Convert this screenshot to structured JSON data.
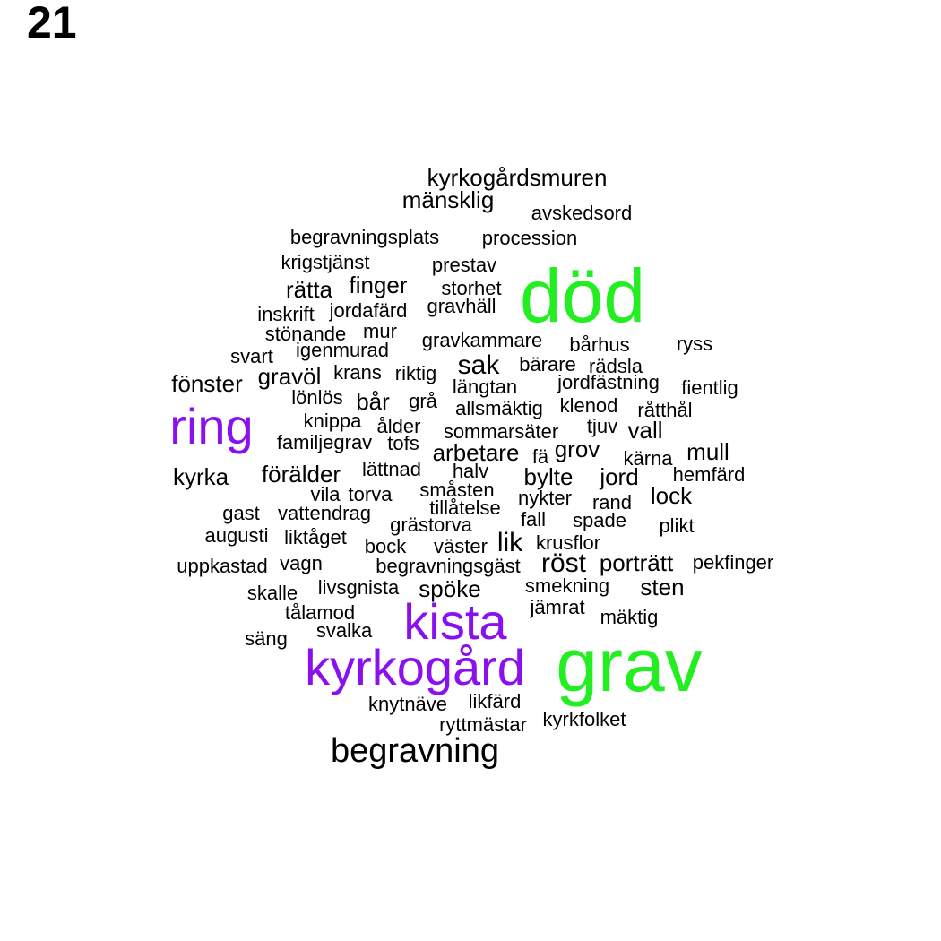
{
  "page_number": "21",
  "colors": {
    "green": "#22ee22",
    "purple": "#8a10ee",
    "black": "#000000"
  },
  "words": [
    {
      "text": "död",
      "color": "green",
      "size": "xl"
    },
    {
      "text": "grav",
      "color": "green",
      "size": "xl"
    },
    {
      "text": "kyrkogård",
      "color": "purple",
      "size": "l"
    },
    {
      "text": "kista",
      "color": "purple",
      "size": "l"
    },
    {
      "text": "ring",
      "color": "purple",
      "size": "l"
    },
    {
      "text": "begravning",
      "color": "black",
      "size": "m"
    },
    {
      "text": "sak",
      "color": "black",
      "size": "s"
    },
    {
      "text": "lik",
      "color": "black",
      "size": "s"
    },
    {
      "text": "kyrkogårdsmuren",
      "color": "black",
      "size": "r"
    },
    {
      "text": "mänsklig",
      "color": "black",
      "size": "r"
    },
    {
      "text": "avskedsord",
      "color": "black",
      "size": "xs"
    },
    {
      "text": "begravningsplats",
      "color": "black",
      "size": "xs"
    },
    {
      "text": "procession",
      "color": "black",
      "size": "xs"
    },
    {
      "text": "krigstjänst",
      "color": "black",
      "size": "xs"
    },
    {
      "text": "prestav",
      "color": "black",
      "size": "xs"
    },
    {
      "text": "rätta",
      "color": "black",
      "size": "r"
    },
    {
      "text": "finger",
      "color": "black",
      "size": "r"
    },
    {
      "text": "storhet",
      "color": "black",
      "size": "xs"
    },
    {
      "text": "inskrift",
      "color": "black",
      "size": "xs"
    },
    {
      "text": "jordafärd",
      "color": "black",
      "size": "xs"
    },
    {
      "text": "gravhäll",
      "color": "black",
      "size": "xs"
    },
    {
      "text": "stönande",
      "color": "black",
      "size": "xs"
    },
    {
      "text": "mur",
      "color": "black",
      "size": "xs"
    },
    {
      "text": "gravkammare",
      "color": "black",
      "size": "xs"
    },
    {
      "text": "bårhus",
      "color": "black",
      "size": "xs"
    },
    {
      "text": "ryss",
      "color": "black",
      "size": "xs"
    },
    {
      "text": "svart",
      "color": "black",
      "size": "xs"
    },
    {
      "text": "igenmurad",
      "color": "black",
      "size": "xs"
    },
    {
      "text": "bärare",
      "color": "black",
      "size": "xs"
    },
    {
      "text": "rädsla",
      "color": "black",
      "size": "xs"
    },
    {
      "text": "fönster",
      "color": "black",
      "size": "r"
    },
    {
      "text": "gravöl",
      "color": "black",
      "size": "r"
    },
    {
      "text": "krans",
      "color": "black",
      "size": "xs"
    },
    {
      "text": "riktig",
      "color": "black",
      "size": "xs"
    },
    {
      "text": "längtan",
      "color": "black",
      "size": "xs"
    },
    {
      "text": "jordfästning",
      "color": "black",
      "size": "xs"
    },
    {
      "text": "fientlig",
      "color": "black",
      "size": "xs"
    },
    {
      "text": "lönlös",
      "color": "black",
      "size": "xs"
    },
    {
      "text": "bår",
      "color": "black",
      "size": "r"
    },
    {
      "text": "grå",
      "color": "black",
      "size": "xs"
    },
    {
      "text": "allsmäktig",
      "color": "black",
      "size": "xs"
    },
    {
      "text": "klenod",
      "color": "black",
      "size": "xs"
    },
    {
      "text": "råtthål",
      "color": "black",
      "size": "xs"
    },
    {
      "text": "knippa",
      "color": "black",
      "size": "xs"
    },
    {
      "text": "ålder",
      "color": "black",
      "size": "xs"
    },
    {
      "text": "sommarsäter",
      "color": "black",
      "size": "xs"
    },
    {
      "text": "tjuv",
      "color": "black",
      "size": "xs"
    },
    {
      "text": "vall",
      "color": "black",
      "size": "r"
    },
    {
      "text": "familjegrav",
      "color": "black",
      "size": "xs"
    },
    {
      "text": "tofs",
      "color": "black",
      "size": "xs"
    },
    {
      "text": "arbetare",
      "color": "black",
      "size": "r"
    },
    {
      "text": "fä",
      "color": "black",
      "size": "xs"
    },
    {
      "text": "grov",
      "color": "black",
      "size": "r"
    },
    {
      "text": "kärna",
      "color": "black",
      "size": "xs"
    },
    {
      "text": "mull",
      "color": "black",
      "size": "r"
    },
    {
      "text": "kyrka",
      "color": "black",
      "size": "r"
    },
    {
      "text": "förälder",
      "color": "black",
      "size": "r"
    },
    {
      "text": "lättnad",
      "color": "black",
      "size": "xs"
    },
    {
      "text": "halv",
      "color": "black",
      "size": "xs"
    },
    {
      "text": "bylte",
      "color": "black",
      "size": "r"
    },
    {
      "text": "jord",
      "color": "black",
      "size": "r"
    },
    {
      "text": "hemfärd",
      "color": "black",
      "size": "xs"
    },
    {
      "text": "vila",
      "color": "black",
      "size": "xs"
    },
    {
      "text": "torva",
      "color": "black",
      "size": "xs"
    },
    {
      "text": "småsten",
      "color": "black",
      "size": "xs"
    },
    {
      "text": "nykter",
      "color": "black",
      "size": "xs"
    },
    {
      "text": "rand",
      "color": "black",
      "size": "xs"
    },
    {
      "text": "lock",
      "color": "black",
      "size": "r"
    },
    {
      "text": "tillåtelse",
      "color": "black",
      "size": "xs"
    },
    {
      "text": "gast",
      "color": "black",
      "size": "xs"
    },
    {
      "text": "vattendrag",
      "color": "black",
      "size": "xs"
    },
    {
      "text": "grästorva",
      "color": "black",
      "size": "xs"
    },
    {
      "text": "fall",
      "color": "black",
      "size": "xs"
    },
    {
      "text": "spade",
      "color": "black",
      "size": "xs"
    },
    {
      "text": "plikt",
      "color": "black",
      "size": "xs"
    },
    {
      "text": "augusti",
      "color": "black",
      "size": "xs"
    },
    {
      "text": "liktåget",
      "color": "black",
      "size": "xs"
    },
    {
      "text": "bock",
      "color": "black",
      "size": "xs"
    },
    {
      "text": "väster",
      "color": "black",
      "size": "xs"
    },
    {
      "text": "krusflor",
      "color": "black",
      "size": "xs"
    },
    {
      "text": "uppkastad",
      "color": "black",
      "size": "xs"
    },
    {
      "text": "vagn",
      "color": "black",
      "size": "xs"
    },
    {
      "text": "begravningsgäst",
      "color": "black",
      "size": "xs"
    },
    {
      "text": "röst",
      "color": "black",
      "size": "s"
    },
    {
      "text": "porträtt",
      "color": "black",
      "size": "r"
    },
    {
      "text": "pekfinger",
      "color": "black",
      "size": "xs"
    },
    {
      "text": "skalle",
      "color": "black",
      "size": "xs"
    },
    {
      "text": "livsgnista",
      "color": "black",
      "size": "xs"
    },
    {
      "text": "spöke",
      "color": "black",
      "size": "r"
    },
    {
      "text": "smekning",
      "color": "black",
      "size": "xs"
    },
    {
      "text": "sten",
      "color": "black",
      "size": "r"
    },
    {
      "text": "tålamod",
      "color": "black",
      "size": "xs"
    },
    {
      "text": "jämrat",
      "color": "black",
      "size": "xs"
    },
    {
      "text": "mäktig",
      "color": "black",
      "size": "xs"
    },
    {
      "text": "säng",
      "color": "black",
      "size": "xs"
    },
    {
      "text": "svalka",
      "color": "black",
      "size": "xs"
    },
    {
      "text": "knytnäve",
      "color": "black",
      "size": "xs"
    },
    {
      "text": "likfärd",
      "color": "black",
      "size": "xs"
    },
    {
      "text": "ryttmästar",
      "color": "black",
      "size": "xs"
    },
    {
      "text": "kyrkfolket",
      "color": "black",
      "size": "xs"
    }
  ]
}
